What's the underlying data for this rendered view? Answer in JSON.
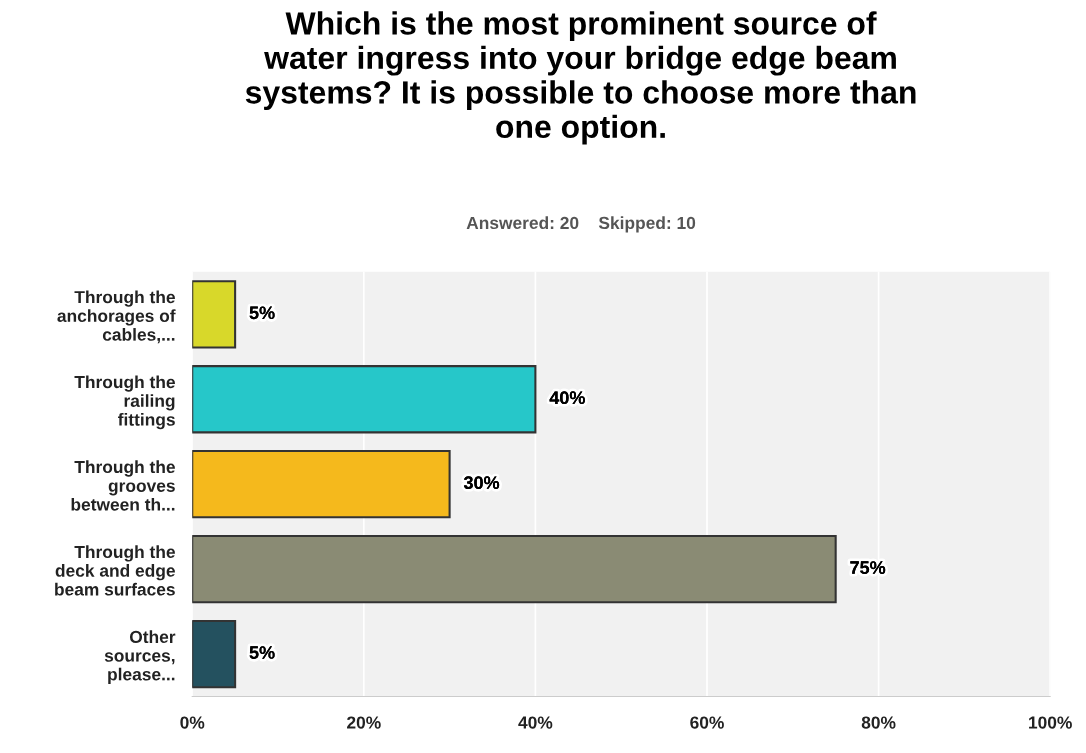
{
  "chart_data": {
    "type": "bar",
    "orientation": "horizontal",
    "title": "Which is the most prominent source of\nwater ingress into your bridge edge beam\nsystems? It is possible to choose more than\none option.",
    "subtitle": "Answered: 20    Skipped: 10",
    "categories": [
      "Through the\nanchorages of\ncables,...",
      "Through the\nrailing\nfittings",
      "Through the\ngrooves\nbetween th...",
      "Through the\ndeck and edge\nbeam surfaces",
      "Other\nsources,\nplease..."
    ],
    "values": [
      5,
      40,
      30,
      75,
      5
    ],
    "colors": [
      "#d8d82a",
      "#26c7c9",
      "#f5b91c",
      "#8a8b74",
      "#24515f"
    ],
    "value_labels": [
      "5%",
      "40%",
      "30%",
      "75%",
      "5%"
    ],
    "xlim": [
      0,
      100
    ],
    "xticks": [
      {
        "value": 0,
        "label": "0%"
      },
      {
        "value": 20,
        "label": "20%"
      },
      {
        "value": 40,
        "label": "40%"
      },
      {
        "value": 60,
        "label": "60%"
      },
      {
        "value": 80,
        "label": "80%"
      },
      {
        "value": 100,
        "label": "100%"
      }
    ],
    "grid": "x"
  }
}
